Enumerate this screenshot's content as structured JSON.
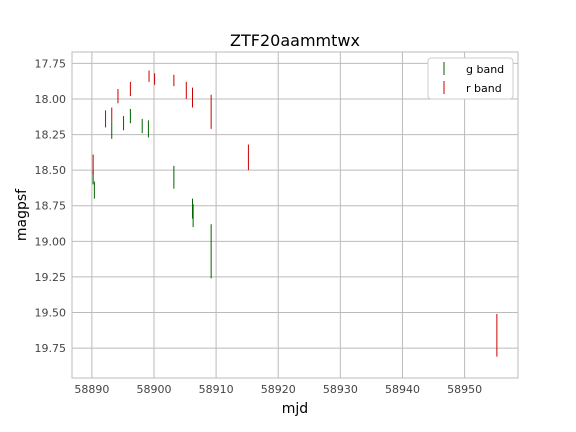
{
  "chart_data": {
    "type": "scatter",
    "title": "ZTF20aammtwx",
    "xlabel": "mjd",
    "ylabel": "magpsf",
    "xlim": [
      58886.8,
      58958.6
    ],
    "ylim": [
      19.96,
      17.67
    ],
    "y_inverted": true,
    "x_ticks": [
      58890,
      58900,
      58910,
      58920,
      58930,
      58940,
      58950
    ],
    "y_ticks": [
      17.75,
      18.0,
      18.25,
      18.5,
      18.75,
      19.0,
      19.25,
      19.5,
      19.75
    ],
    "grid": true,
    "legend_position": "top-right",
    "series": [
      {
        "name": "g band",
        "color": "#006400",
        "marker": "vertical-errorbar",
        "points": [
          {
            "x": 58890.2,
            "y": 18.55,
            "err": 0.05
          },
          {
            "x": 58890.4,
            "y": 18.64,
            "err": 0.06
          },
          {
            "x": 58893.2,
            "y": 18.22,
            "err": 0.06
          },
          {
            "x": 58895.1,
            "y": 18.17,
            "err": 0.05
          },
          {
            "x": 58896.2,
            "y": 18.12,
            "err": 0.05
          },
          {
            "x": 58898.1,
            "y": 18.19,
            "err": 0.05
          },
          {
            "x": 58899.1,
            "y": 18.21,
            "err": 0.06
          },
          {
            "x": 58903.2,
            "y": 18.55,
            "err": 0.08
          },
          {
            "x": 58906.2,
            "y": 18.77,
            "err": 0.07
          },
          {
            "x": 58906.3,
            "y": 18.82,
            "err": 0.08
          },
          {
            "x": 58909.2,
            "y": 19.07,
            "err": 0.19
          }
        ]
      },
      {
        "name": "r band",
        "color": "#cc0000",
        "marker": "vertical-errorbar",
        "points": [
          {
            "x": 58890.2,
            "y": 18.46,
            "err": 0.07
          },
          {
            "x": 58892.2,
            "y": 18.14,
            "err": 0.06
          },
          {
            "x": 58893.2,
            "y": 18.11,
            "err": 0.05
          },
          {
            "x": 58894.2,
            "y": 17.98,
            "err": 0.05
          },
          {
            "x": 58896.2,
            "y": 17.93,
            "err": 0.05
          },
          {
            "x": 58899.2,
            "y": 17.84,
            "err": 0.04
          },
          {
            "x": 58900.1,
            "y": 17.86,
            "err": 0.04
          },
          {
            "x": 58903.2,
            "y": 17.87,
            "err": 0.04
          },
          {
            "x": 58905.2,
            "y": 17.94,
            "err": 0.06
          },
          {
            "x": 58906.2,
            "y": 17.99,
            "err": 0.07
          },
          {
            "x": 58909.2,
            "y": 18.09,
            "err": 0.12
          },
          {
            "x": 58915.2,
            "y": 18.41,
            "err": 0.09
          },
          {
            "x": 58955.2,
            "y": 19.66,
            "err": 0.15
          }
        ]
      }
    ]
  }
}
